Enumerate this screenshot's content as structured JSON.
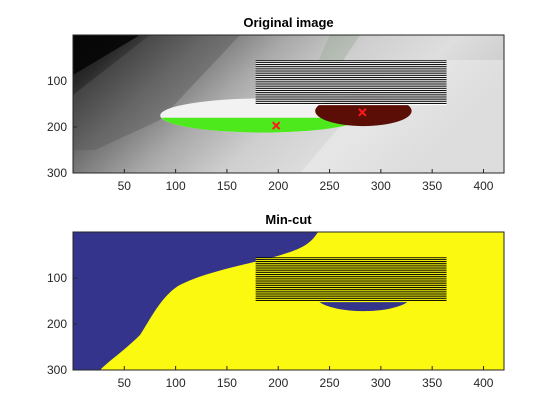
{
  "colors": {
    "bg_light": "#d4d4d4",
    "bg_dark": "#0e0e0e",
    "ellipse_white": "#f2f2f2",
    "green": "#4ee91c",
    "dark_red": "#5a0e06",
    "seed_marker": "#ff1a1a",
    "stripe_dark": "#000000",
    "stripe_light": "#ffffff",
    "mincut_blue": "#35348d",
    "mincut_yellow": "#fbf90f"
  },
  "panels": [
    {
      "id": "original",
      "title": "Original image",
      "xlim": [
        0,
        420
      ],
      "ylim": [
        300,
        0
      ],
      "xticks": [
        "50",
        "100",
        "150",
        "200",
        "250",
        "300",
        "350",
        "400"
      ],
      "yticks": [
        "100",
        "200",
        "300"
      ],
      "seeds": [
        {
          "x": 198,
          "y": 197,
          "color": "#ff1a1a",
          "shape": "x"
        },
        {
          "x": 282,
          "y": 168,
          "color": "#ff1a1a",
          "shape": "x"
        }
      ]
    },
    {
      "id": "mincut",
      "title": "Min-cut",
      "xlim": [
        0,
        420
      ],
      "ylim": [
        300,
        0
      ],
      "xticks": [
        "50",
        "100",
        "150",
        "200",
        "250",
        "300",
        "350",
        "400"
      ],
      "yticks": [
        "100",
        "200",
        "300"
      ]
    }
  ],
  "scene": {
    "big_ellipse": {
      "cx": 185,
      "cy": 175,
      "rx": 100,
      "ry": 37
    },
    "green_band_top_y": 180,
    "small_ellipse": {
      "cx": 283,
      "cy": 165,
      "rx": 47,
      "ry": 33
    },
    "stripes": {
      "x0": 178,
      "x1": 364,
      "y0": 55,
      "y1": 152,
      "count": 24
    }
  }
}
